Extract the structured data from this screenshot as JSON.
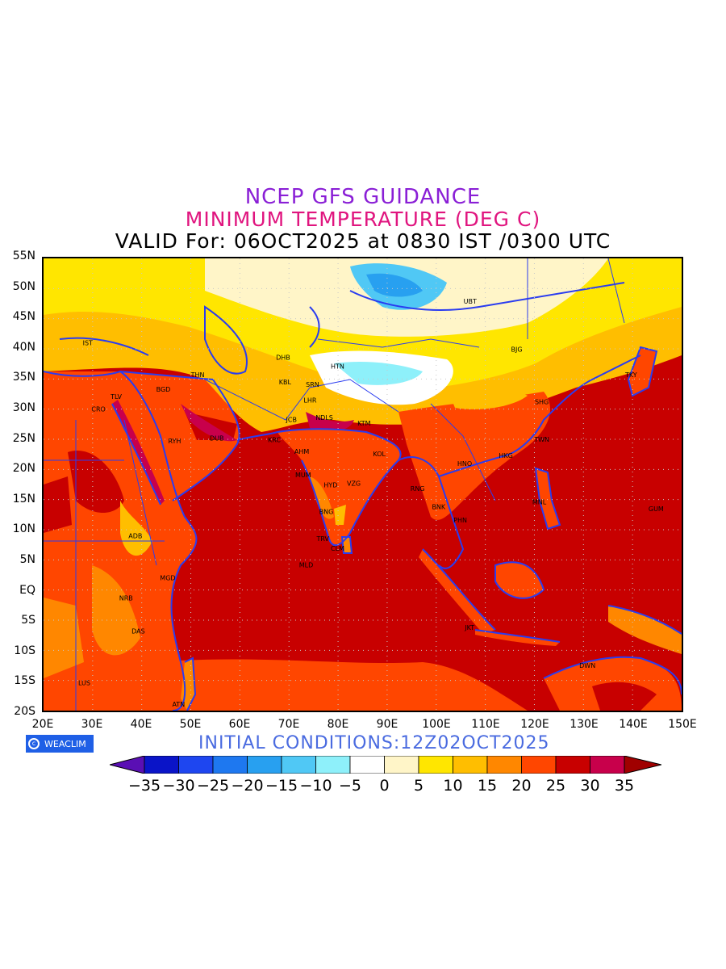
{
  "header": {
    "line1": "NCEP GFS GUIDANCE",
    "line2": "MINIMUM TEMPERATURE (DEG C)",
    "line3": "VALID For: 06OCT2025 at 0830 IST /0300 UTC"
  },
  "footer": {
    "logo_text": "WEACLIM",
    "initial_conditions": "INITIAL CONDITIONS:12Z02OCT2025"
  },
  "axes": {
    "lat_labels": [
      "55N",
      "50N",
      "45N",
      "40N",
      "35N",
      "30N",
      "25N",
      "20N",
      "15N",
      "10N",
      "5N",
      "EQ",
      "5S",
      "10S",
      "15S",
      "20S"
    ],
    "lon_labels": [
      "20E",
      "30E",
      "40E",
      "50E",
      "60E",
      "70E",
      "80E",
      "90E",
      "100E",
      "110E",
      "120E",
      "130E",
      "140E",
      "150E"
    ]
  },
  "colorbar": {
    "labels": [
      "-35",
      "-30",
      "-25",
      "-20",
      "-15",
      "-10",
      "-5",
      "0",
      "5",
      "10",
      "15",
      "20",
      "25",
      "30",
      "35"
    ],
    "colors": [
      "#5a0fb4",
      "#0a14c8",
      "#1e46f0",
      "#1e78f0",
      "#28a0f0",
      "#50c8f5",
      "#8ef0fa",
      "#ffffff",
      "#fff5c8",
      "#ffe600",
      "#ffbe00",
      "#ff8700",
      "#ff4600",
      "#c80000",
      "#c8004b",
      "#a00000"
    ]
  },
  "cities": [
    {
      "code": "UBT",
      "lon": 106.9,
      "lat": 47.9
    },
    {
      "code": "BJG",
      "lon": 116.4,
      "lat": 39.9
    },
    {
      "code": "TKY",
      "lon": 139.7,
      "lat": 35.7
    },
    {
      "code": "SHG",
      "lon": 121.5,
      "lat": 31.2
    },
    {
      "code": "TWN",
      "lon": 121.5,
      "lat": 25.0
    },
    {
      "code": "HKG",
      "lon": 114.2,
      "lat": 22.3
    },
    {
      "code": "HNO",
      "lon": 105.8,
      "lat": 21.0
    },
    {
      "code": "MNL",
      "lon": 121.0,
      "lat": 14.6
    },
    {
      "code": "GUM",
      "lon": 144.8,
      "lat": 13.5
    },
    {
      "code": "BNK",
      "lon": 100.5,
      "lat": 13.8
    },
    {
      "code": "PHN",
      "lon": 104.9,
      "lat": 11.6
    },
    {
      "code": "RNG",
      "lon": 96.2,
      "lat": 16.8
    },
    {
      "code": "KOL",
      "lon": 88.4,
      "lat": 22.6
    },
    {
      "code": "KTM",
      "lon": 85.3,
      "lat": 27.7
    },
    {
      "code": "NDLS",
      "lon": 77.2,
      "lat": 28.6
    },
    {
      "code": "LHR",
      "lon": 74.3,
      "lat": 31.5
    },
    {
      "code": "SRN",
      "lon": 74.8,
      "lat": 34.1
    },
    {
      "code": "KBL",
      "lon": 69.2,
      "lat": 34.5
    },
    {
      "code": "DHB",
      "lon": 68.8,
      "lat": 38.6
    },
    {
      "code": "HTN",
      "lon": 79.9,
      "lat": 37.1
    },
    {
      "code": "JCB",
      "lon": 70.5,
      "lat": 28.3
    },
    {
      "code": "KRC",
      "lon": 67.0,
      "lat": 24.9
    },
    {
      "code": "AHM",
      "lon": 72.6,
      "lat": 23.0
    },
    {
      "code": "MUM",
      "lon": 72.9,
      "lat": 19.1
    },
    {
      "code": "HYD",
      "lon": 78.5,
      "lat": 17.4
    },
    {
      "code": "VZG",
      "lon": 83.2,
      "lat": 17.7
    },
    {
      "code": "BNG",
      "lon": 77.6,
      "lat": 13.0
    },
    {
      "code": "TRV",
      "lon": 76.9,
      "lat": 8.5
    },
    {
      "code": "CLM",
      "lon": 79.9,
      "lat": 6.9
    },
    {
      "code": "MLD",
      "lon": 73.5,
      "lat": 4.2
    },
    {
      "code": "THN",
      "lon": 51.4,
      "lat": 35.7
    },
    {
      "code": "BGD",
      "lon": 44.4,
      "lat": 33.3
    },
    {
      "code": "IST",
      "lon": 29.0,
      "lat": 41.0
    },
    {
      "code": "TLV",
      "lon": 34.8,
      "lat": 32.1
    },
    {
      "code": "CRO",
      "lon": 31.2,
      "lat": 30.0
    },
    {
      "code": "RYH",
      "lon": 46.7,
      "lat": 24.7
    },
    {
      "code": "DUB",
      "lon": 55.3,
      "lat": 25.2
    },
    {
      "code": "ADB",
      "lon": 38.7,
      "lat": 9.0
    },
    {
      "code": "MGD",
      "lon": 45.3,
      "lat": 2.0
    },
    {
      "code": "NRB",
      "lon": 36.8,
      "lat": -1.3
    },
    {
      "code": "DAS",
      "lon": 39.3,
      "lat": -6.8
    },
    {
      "code": "LUS",
      "lon": 28.3,
      "lat": -15.4
    },
    {
      "code": "ATN",
      "lon": 47.5,
      "lat": -18.9
    },
    {
      "code": "JKT",
      "lon": 106.8,
      "lat": -6.2
    },
    {
      "code": "DWN",
      "lon": 130.8,
      "lat": -12.5
    }
  ]
}
